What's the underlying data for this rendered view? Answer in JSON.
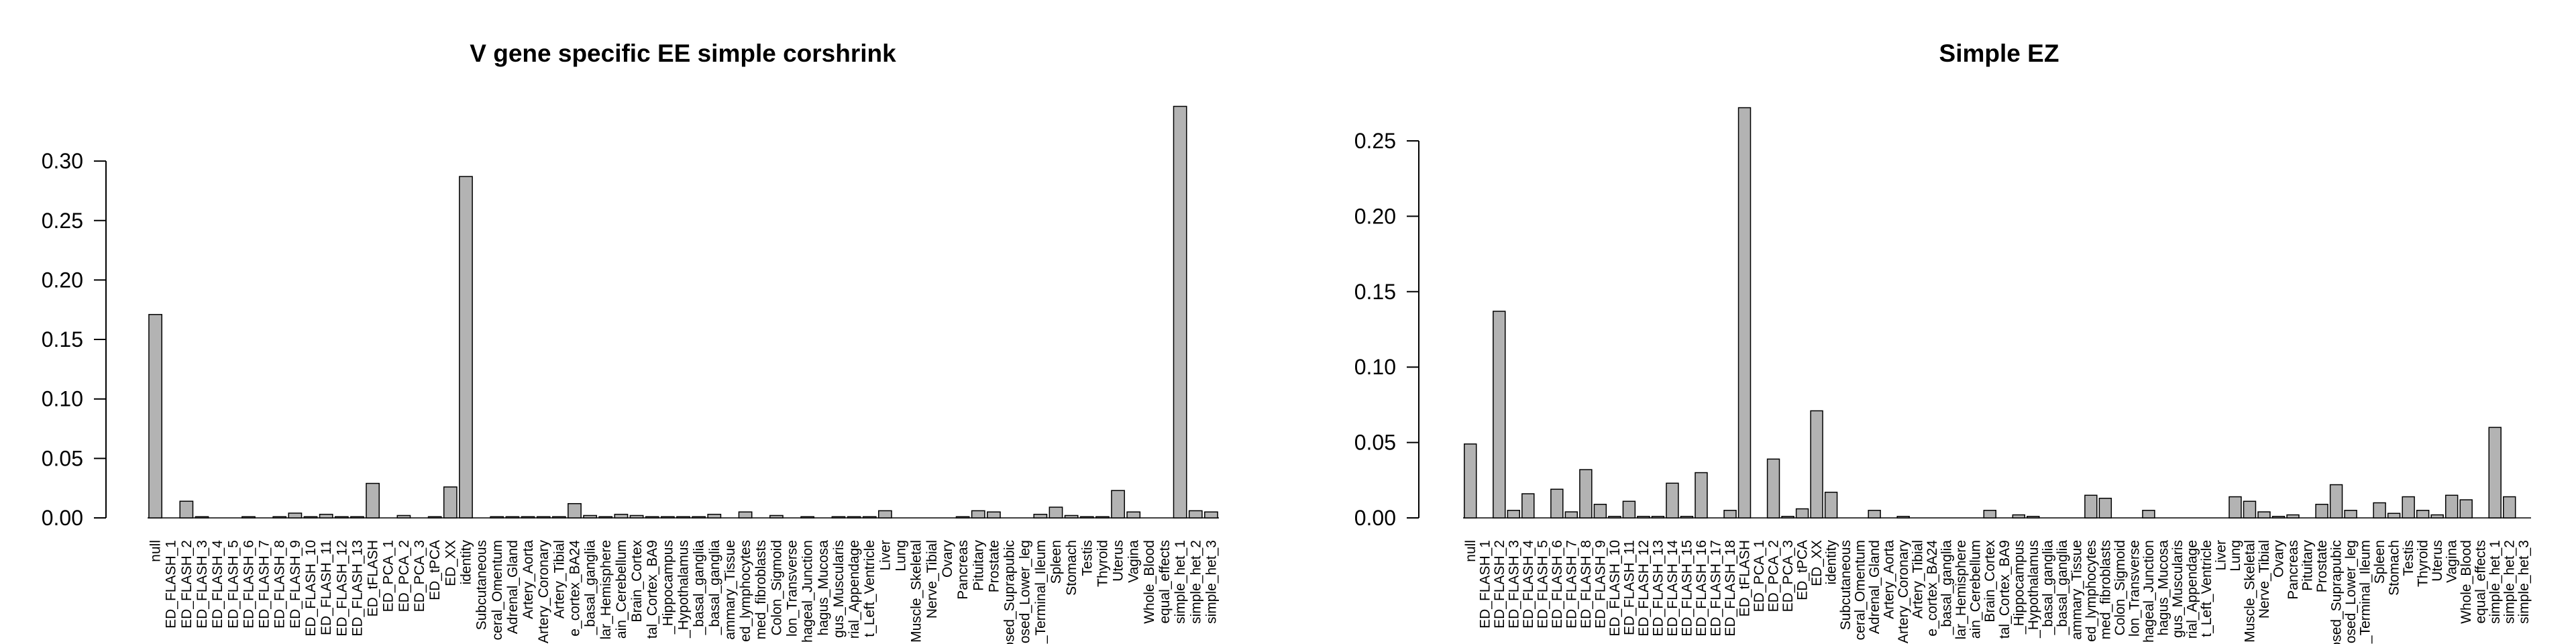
{
  "chart_data": [
    {
      "type": "bar",
      "title": "V gene specific EE simple corshrink",
      "color": "#b3b3b3",
      "categories": [
        "null",
        "ED_FLASH_1",
        "ED_FLASH_2",
        "ED_FLASH_3",
        "ED_FLASH_4",
        "ED_FLASH_5",
        "ED_FLASH_6",
        "ED_FLASH_7",
        "ED_FLASH_8",
        "ED_FLASH_9",
        "ED_FLASH_10",
        "ED_FLASH_11",
        "ED_FLASH_12",
        "ED_FLASH_13",
        "ED_tFLASH",
        "ED_PCA_1",
        "ED_PCA_2",
        "ED_PCA_3",
        "ED_tPCA",
        "ED_XX",
        "identity",
        "Subcutaneous",
        "ceral_Omentum",
        "Adrenal_Gland",
        "Artery_Aorta",
        "Artery_Coronary",
        "Artery_Tibial",
        "e_cortex_BA24",
        "_basal_ganglia",
        "lar_Hemisphere",
        "ain_Cerebellum",
        "Brain_Cortex",
        "tal_Cortex_BA9",
        "_Hippocampus",
        "_Hypothalamus",
        "_basal_ganglia",
        "_basal_ganglia",
        "ammary_Tissue",
        "ed_lymphocytes",
        "med_fibroblasts",
        "Colon_Sigmoid",
        "lon_Transverse",
        "hageal_Junction",
        "hagus_Mucosa",
        "gus_Muscularis",
        "rial_Appendage",
        "t_Left_Ventricle",
        "Liver",
        "Lung",
        "Muscle_Skeletal",
        "Nerve_Tibial",
        "Ovary",
        "Pancreas",
        "Pituitary",
        "Prostate",
        "osed_Suprapubic",
        "osed_Lower_leg",
        "_Terminal_Ileum",
        "Spleen",
        "Stomach",
        "Testis",
        "Thyroid",
        "Uterus",
        "Vagina",
        "Whole_Blood",
        "equal_effects",
        "simple_het_1",
        "simple_het_2",
        "simple_het_3"
      ],
      "values": [
        0.171,
        0,
        0.014,
        0.001,
        0,
        0,
        0.001,
        0,
        0.001,
        0.004,
        0.001,
        0.003,
        0.001,
        0.001,
        0.029,
        0,
        0.002,
        0,
        0.001,
        0.026,
        0.287,
        0,
        0.001,
        0.001,
        0.001,
        0.001,
        0.001,
        0.012,
        0.002,
        0.001,
        0.003,
        0.002,
        0.001,
        0.001,
        0.001,
        0.001,
        0.003,
        0,
        0.005,
        0,
        0.002,
        0,
        0.001,
        0,
        0.001,
        0.001,
        0.001,
        0.006,
        0,
        0,
        0,
        0,
        0.001,
        0.006,
        0.005,
        0,
        0,
        0.003,
        0.009,
        0.002,
        0.001,
        0.001,
        0.023,
        0.005,
        0,
        0,
        0.346,
        0.006,
        0.005
      ],
      "ylim": [
        0,
        0.35
      ],
      "yticks": [
        {
          "value": 0,
          "label": "0.00"
        },
        {
          "value": 0.05,
          "label": "0.05"
        },
        {
          "value": 0.1,
          "label": "0.10"
        },
        {
          "value": 0.15,
          "label": "0.15"
        },
        {
          "value": 0.2,
          "label": "0.20"
        },
        {
          "value": 0.25,
          "label": "0.25"
        },
        {
          "value": 0.3,
          "label": "0.30"
        }
      ]
    },
    {
      "type": "bar",
      "title": "Simple EZ",
      "color": "#b3b3b3",
      "categories": [
        "null",
        "ED_FLASH_1",
        "ED_FLASH_2",
        "ED_FLASH_3",
        "ED_FLASH_4",
        "ED_FLASH_5",
        "ED_FLASH_6",
        "ED_FLASH_7",
        "ED_FLASH_8",
        "ED_FLASH_9",
        "ED_FLASH_10",
        "ED_FLASH_11",
        "ED_FLASH_12",
        "ED_FLASH_13",
        "ED_FLASH_14",
        "ED_FLASH_15",
        "ED_FLASH_16",
        "ED_FLASH_17",
        "ED_FLASH_18",
        "ED_tFLASH",
        "ED_PCA_1",
        "ED_PCA_2",
        "ED_PCA_3",
        "ED_tPCA",
        "ED_XX",
        "identity",
        "Subcutaneous",
        "ceral_Omentum",
        "Adrenal_Gland",
        "Artery_Aorta",
        "Artery_Coronary",
        "Artery_Tibial",
        "e_cortex_BA24",
        "_basal_ganglia",
        "lar_Hemisphere",
        "ain_Cerebellum",
        "Brain_Cortex",
        "tal_Cortex_BA9",
        "_Hippocampus",
        "_Hypothalamus",
        "_basal_ganglia",
        "_basal_ganglia",
        "ammary_Tissue",
        "ed_lymphocytes",
        "med_fibroblasts",
        "Colon_Sigmoid",
        "lon_Transverse",
        "hageal_Junction",
        "hagus_Mucosa",
        "gus_Muscularis",
        "rial_Appendage",
        "t_Left_Ventricle",
        "Liver",
        "Lung",
        "Muscle_Skeletal",
        "Nerve_Tibial",
        "Ovary",
        "Pancreas",
        "Pituitary",
        "Prostate",
        "osed_Suprapubic",
        "osed_Lower_leg",
        "_Terminal_Ileum",
        "Spleen",
        "Stomach",
        "Testis",
        "Thyroid",
        "Uterus",
        "Vagina",
        "Whole_Blood",
        "equal_effects",
        "simple_het_1",
        "simple_het_2",
        "simple_het_3"
      ],
      "values": [
        0.049,
        0,
        0.137,
        0.005,
        0.016,
        0,
        0.019,
        0.004,
        0.032,
        0.009,
        0.001,
        0.011,
        0.001,
        0.001,
        0.023,
        0.001,
        0.03,
        0,
        0.005,
        0.272,
        0,
        0.039,
        0.001,
        0.006,
        0.071,
        0.017,
        0,
        0,
        0.005,
        0,
        0.001,
        0,
        0,
        0,
        0,
        0,
        0.005,
        0,
        0.002,
        0.001,
        0,
        0,
        0,
        0.015,
        0.013,
        0,
        0,
        0.005,
        0,
        0,
        0,
        0,
        0,
        0.014,
        0.011,
        0.004,
        0.001,
        0.002,
        0,
        0.009,
        0.022,
        0.005,
        0,
        0.01,
        0.003,
        0.014,
        0.005,
        0.002,
        0.015,
        0.012,
        0,
        0.06,
        0.014,
        0
      ],
      "ylim": [
        0,
        0.28
      ],
      "yticks": [
        {
          "value": 0,
          "label": "0.00"
        },
        {
          "value": 0.05,
          "label": "0.05"
        },
        {
          "value": 0.1,
          "label": "0.10"
        },
        {
          "value": 0.15,
          "label": "0.15"
        },
        {
          "value": 0.2,
          "label": "0.20"
        },
        {
          "value": 0.25,
          "label": "0.25"
        }
      ]
    }
  ]
}
